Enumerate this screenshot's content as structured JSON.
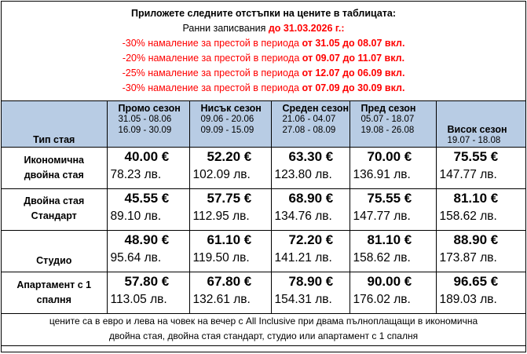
{
  "notice": {
    "title": "Приложете следните отстъпки на цените в таблицата:",
    "early_booking_label": "Ранни записвания ",
    "early_booking_deadline": "до 31.03.2026 г.:",
    "discounts": [
      {
        "pct": "-30%",
        "text": " намаление за престой в периода ",
        "period": "от 31.05 до 08.07 вкл."
      },
      {
        "pct": "-20%",
        "text": " намаление за престой в периода ",
        "period": "от 09.07 до 11.07 вкл."
      },
      {
        "pct": "-25%",
        "text": " намаление за престой в периода ",
        "period": "от 12.07 до 06.09 вкл."
      },
      {
        "pct": "-30%",
        "text": " намаление за престой в периода ",
        "period": "от 07.09 до 30.09 вкл."
      }
    ]
  },
  "colors": {
    "header_bg": "#b8cce4",
    "discount_red": "#ff0000"
  },
  "table": {
    "room_type_header": "Тип стая",
    "seasons": [
      {
        "name": "Промо сезон",
        "range1": "31.05 - 08.06",
        "range2": "16.09 - 30.09"
      },
      {
        "name": "Нисък сезон",
        "range1": "09.06 - 20.06",
        "range2": "09.09 - 15.09"
      },
      {
        "name": "Среден сезон",
        "range1": "21.06 - 04.07",
        "range2": "27.08 - 08.09"
      },
      {
        "name": "Пред сезон",
        "range1": "05.07 - 18.07",
        "range2": "19.08 - 26.08"
      },
      {
        "name": "Висок сезон",
        "range1": "19.07 - 18.08"
      }
    ],
    "rows": [
      {
        "room_line1": "Икономична",
        "room_line2": "двойна стая",
        "prices": [
          {
            "eur": "40.00 €",
            "bgn": "78.23 лв."
          },
          {
            "eur": "52.20 €",
            "bgn": "102.09 лв."
          },
          {
            "eur": "63.30 €",
            "bgn": "123.80 лв."
          },
          {
            "eur": "70.00 €",
            "bgn": "136.91 лв."
          },
          {
            "eur": "75.55 €",
            "bgn": "147.77 лв."
          }
        ]
      },
      {
        "room_line1": "Двойна стая",
        "room_line2": "Стандарт",
        "prices": [
          {
            "eur": "45.55 €",
            "bgn": "89.10 лв."
          },
          {
            "eur": "57.75 €",
            "bgn": "112.95 лв."
          },
          {
            "eur": "68.90 €",
            "bgn": "134.76 лв."
          },
          {
            "eur": "75.55 €",
            "bgn": "147.77 лв."
          },
          {
            "eur": "81.10 €",
            "bgn": "158.62 лв."
          }
        ]
      },
      {
        "room_line1": "Студио",
        "room_line2": "",
        "prices": [
          {
            "eur": "48.90 €",
            "bgn": "95.64 лв."
          },
          {
            "eur": "61.10 €",
            "bgn": "119.50 лв."
          },
          {
            "eur": "72.20 €",
            "bgn": "141.21 лв."
          },
          {
            "eur": "81.10 €",
            "bgn": "158.62 лв."
          },
          {
            "eur": "88.90 €",
            "bgn": "173.87 лв."
          }
        ]
      },
      {
        "room_line1": "Апартамент с 1",
        "room_line2": "спалня",
        "prices": [
          {
            "eur": "57.80 €",
            "bgn": "113.05 лв."
          },
          {
            "eur": "67.80 €",
            "bgn": "132.61 лв."
          },
          {
            "eur": "78.90 €",
            "bgn": "154.31 лв."
          },
          {
            "eur": "90.00 €",
            "bgn": "176.02 лв."
          },
          {
            "eur": "96.65 €",
            "bgn": "189.03 лв."
          }
        ]
      }
    ],
    "footer_line1": "цените са в евро и лева на човек на вечер с All Inclusive при двама пълноплащащи в икономична",
    "footer_line2": "двойна стая, двойна стая стандарт, студио или апартамент с 1 спалня"
  }
}
